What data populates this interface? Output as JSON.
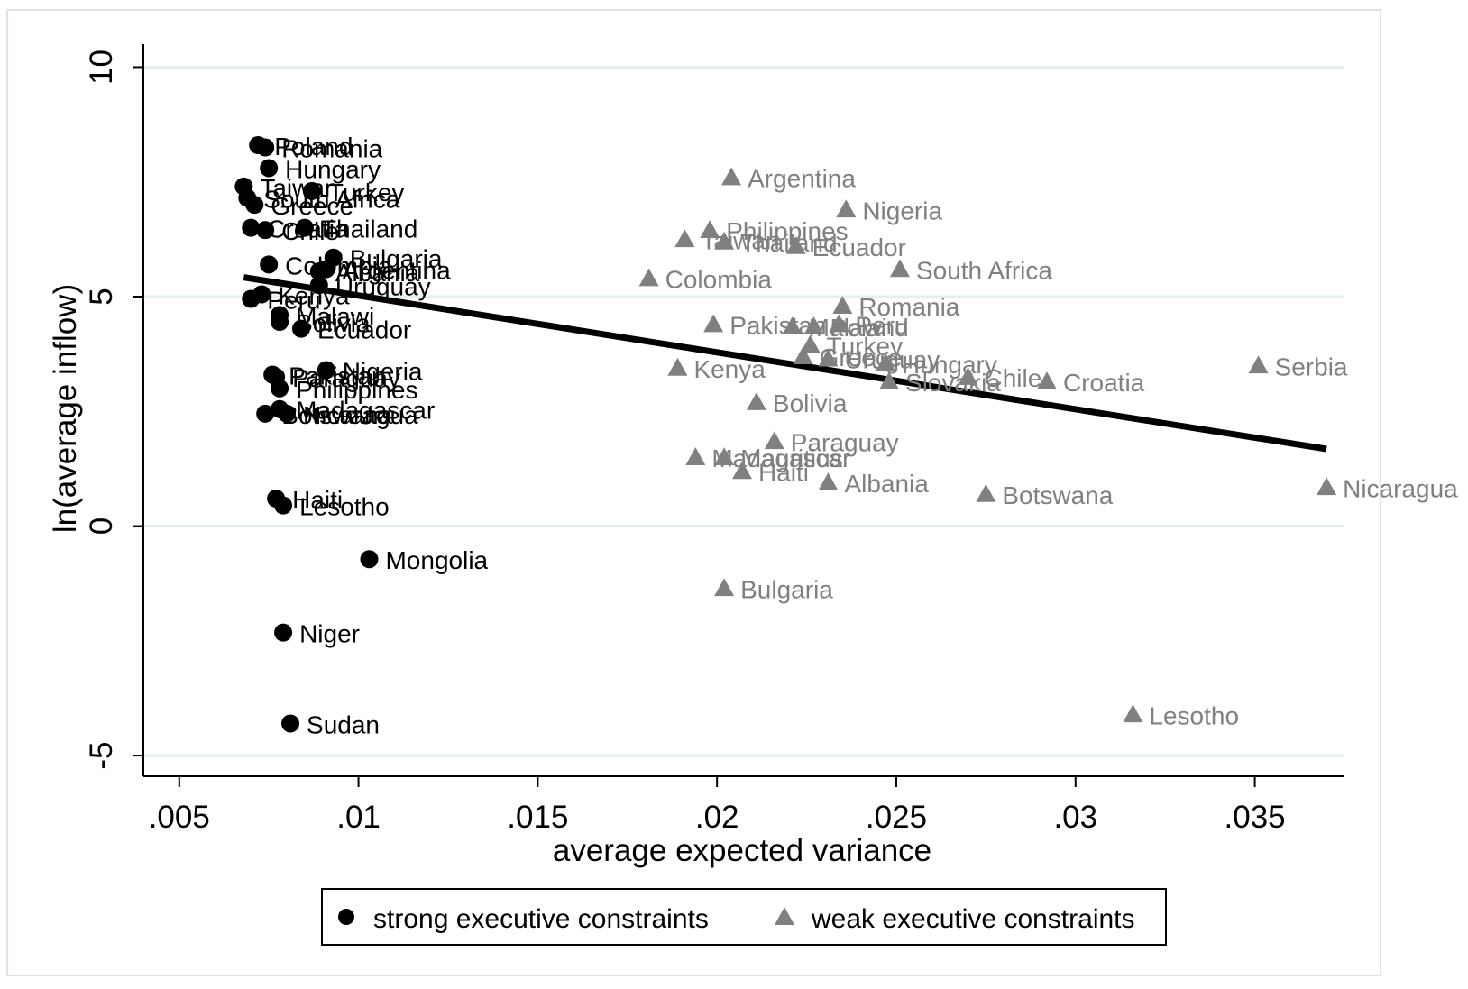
{
  "chart_data": {
    "type": "scatter",
    "title": "",
    "xlabel": "average expected variance",
    "ylabel": "ln(average inflow)",
    "xlim": [
      0.004,
      0.0375
    ],
    "ylim": [
      -5.45,
      10.5
    ],
    "x_ticks": [
      {
        "value": 0.005,
        "label": ".005"
      },
      {
        "value": 0.01,
        "label": ".01"
      },
      {
        "value": 0.015,
        "label": ".015"
      },
      {
        "value": 0.02,
        "label": ".02"
      },
      {
        "value": 0.025,
        "label": ".025"
      },
      {
        "value": 0.03,
        "label": ".03"
      },
      {
        "value": 0.035,
        "label": ".035"
      }
    ],
    "y_ticks": [
      {
        "value": 10,
        "label": "10"
      },
      {
        "value": 5,
        "label": "5"
      },
      {
        "value": 0,
        "label": "0"
      },
      {
        "value": -5,
        "label": "-5"
      }
    ],
    "grid": "horizontal",
    "legend_position": "bottom",
    "colors": {
      "strong": "#000000",
      "weak": "#808080",
      "grid": "#e6efef",
      "fit": "#000000"
    },
    "fit_line": {
      "x": [
        0.0068,
        0.037
      ],
      "y": [
        5.42,
        1.68
      ]
    },
    "series": [
      {
        "name": "strong executive constraints",
        "marker": "circle",
        "points": [
          {
            "label": "Poland",
            "x": 0.0072,
            "y": 8.3
          },
          {
            "label": "Romania",
            "x": 0.0074,
            "y": 8.25
          },
          {
            "label": "Hungary",
            "x": 0.0075,
            "y": 7.8
          },
          {
            "label": "Taiwan",
            "x": 0.0068,
            "y": 7.4
          },
          {
            "label": "Turkey",
            "x": 0.0087,
            "y": 7.3
          },
          {
            "label": "South Africa",
            "x": 0.0069,
            "y": 7.15
          },
          {
            "label": "Greece",
            "x": 0.0071,
            "y": 7.0
          },
          {
            "label": "Croatia",
            "x": 0.007,
            "y": 6.5
          },
          {
            "label": "Chile",
            "x": 0.0074,
            "y": 6.45
          },
          {
            "label": "Thailand",
            "x": 0.0085,
            "y": 6.5
          },
          {
            "label": "Bulgaria",
            "x": 0.0093,
            "y": 5.85
          },
          {
            "label": "Colombia",
            "x": 0.0075,
            "y": 5.7
          },
          {
            "label": "Argentina",
            "x": 0.0091,
            "y": 5.6
          },
          {
            "label": "Albania",
            "x": 0.0089,
            "y": 5.55
          },
          {
            "label": "Uruguay",
            "x": 0.0089,
            "y": 5.25
          },
          {
            "label": "Kenya",
            "x": 0.0073,
            "y": 5.05
          },
          {
            "label": "Peru",
            "x": 0.007,
            "y": 4.95
          },
          {
            "label": "Malawi",
            "x": 0.0078,
            "y": 4.6
          },
          {
            "label": "Bolivia",
            "x": 0.0078,
            "y": 4.45
          },
          {
            "label": "Ecuador",
            "x": 0.0084,
            "y": 4.3
          },
          {
            "label": "Nigeria",
            "x": 0.0091,
            "y": 3.4
          },
          {
            "label": "Pakistan",
            "x": 0.0076,
            "y": 3.3
          },
          {
            "label": "Paraguay",
            "x": 0.0077,
            "y": 3.25
          },
          {
            "label": "Philippines",
            "x": 0.0078,
            "y": 3.0
          },
          {
            "label": "Madagascar",
            "x": 0.0078,
            "y": 2.55
          },
          {
            "label": "Botswana",
            "x": 0.0074,
            "y": 2.45
          },
          {
            "label": "Nicaragua",
            "x": 0.008,
            "y": 2.45
          },
          {
            "label": "Haiti",
            "x": 0.0077,
            "y": 0.6
          },
          {
            "label": "Lesotho",
            "x": 0.0079,
            "y": 0.45
          },
          {
            "label": "Mongolia",
            "x": 0.0103,
            "y": -0.72
          },
          {
            "label": "Niger",
            "x": 0.0079,
            "y": -2.32
          },
          {
            "label": "Sudan",
            "x": 0.0081,
            "y": -4.3
          }
        ]
      },
      {
        "name": "weak executive constraints",
        "marker": "triangle",
        "points": [
          {
            "label": "Argentina",
            "x": 0.0204,
            "y": 7.6
          },
          {
            "label": "Nigeria",
            "x": 0.0236,
            "y": 6.9
          },
          {
            "label": "Philippines",
            "x": 0.0198,
            "y": 6.45
          },
          {
            "label": "Taiwan",
            "x": 0.0191,
            "y": 6.25
          },
          {
            "label": "Thailand",
            "x": 0.0202,
            "y": 6.2
          },
          {
            "label": "Ecuador",
            "x": 0.0222,
            "y": 6.1
          },
          {
            "label": "South Africa",
            "x": 0.0251,
            "y": 5.6
          },
          {
            "label": "Colombia",
            "x": 0.0181,
            "y": 5.4
          },
          {
            "label": "Romania",
            "x": 0.0235,
            "y": 4.8
          },
          {
            "label": "Pakistan",
            "x": 0.0199,
            "y": 4.4
          },
          {
            "label": "Malawi",
            "x": 0.0221,
            "y": 4.35
          },
          {
            "label": "Poland",
            "x": 0.0227,
            "y": 4.35
          },
          {
            "label": "Peru",
            "x": 0.0234,
            "y": 4.4
          },
          {
            "label": "Turkey",
            "x": 0.0226,
            "y": 3.95
          },
          {
            "label": "Greece",
            "x": 0.0224,
            "y": 3.7
          },
          {
            "label": "Uruguay",
            "x": 0.0231,
            "y": 3.65
          },
          {
            "label": "Hungary",
            "x": 0.0247,
            "y": 3.55
          },
          {
            "label": "Slovakia",
            "x": 0.0248,
            "y": 3.15
          },
          {
            "label": "Chile",
            "x": 0.027,
            "y": 3.25
          },
          {
            "label": "Croatia",
            "x": 0.0292,
            "y": 3.15
          },
          {
            "label": "Serbia",
            "x": 0.0351,
            "y": 3.5
          },
          {
            "label": "Kenya",
            "x": 0.0189,
            "y": 3.45
          },
          {
            "label": "Bolivia",
            "x": 0.0211,
            "y": 2.7
          },
          {
            "label": "Paraguay",
            "x": 0.0216,
            "y": 1.85
          },
          {
            "label": "Madagascar",
            "x": 0.0194,
            "y": 1.5
          },
          {
            "label": "Mauritius",
            "x": 0.0202,
            "y": 1.5
          },
          {
            "label": "Haiti",
            "x": 0.0207,
            "y": 1.2
          },
          {
            "label": "Albania",
            "x": 0.0231,
            "y": 0.95
          },
          {
            "label": "Botswana",
            "x": 0.0275,
            "y": 0.7
          },
          {
            "label": "Nicaragua",
            "x": 0.037,
            "y": 0.85
          },
          {
            "label": "Bulgaria",
            "x": 0.0202,
            "y": -1.35
          },
          {
            "label": "Lesotho",
            "x": 0.0316,
            "y": -4.1
          }
        ]
      }
    ]
  }
}
